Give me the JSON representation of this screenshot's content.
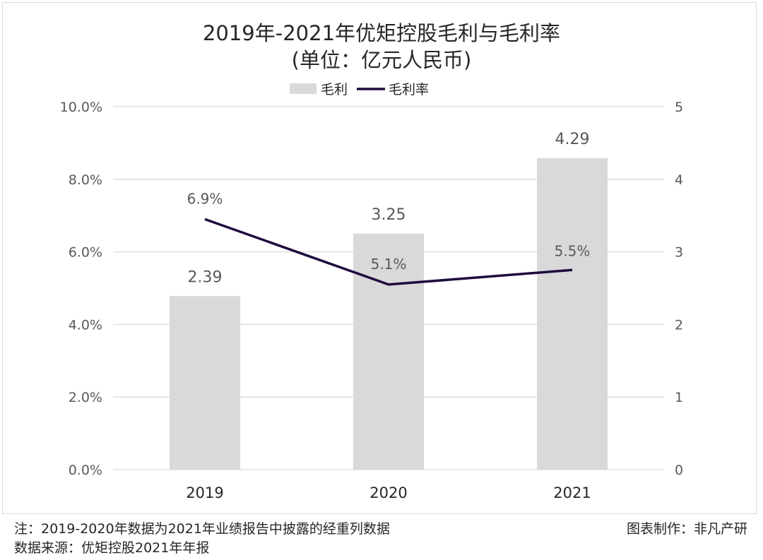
{
  "chart_data": {
    "type": "bar+line",
    "title": "2019年-2021年优矩控股毛利与毛利率",
    "subtitle": "(单位：亿元人民币)",
    "categories": [
      "2019",
      "2020",
      "2021"
    ],
    "series": [
      {
        "name": "毛利",
        "type": "bar",
        "axis": "right",
        "values": [
          2.39,
          3.25,
          4.29
        ],
        "labels": [
          "2.39",
          "3.25",
          "4.29"
        ],
        "color": "#d9d9d9"
      },
      {
        "name": "毛利率",
        "type": "line",
        "axis": "left",
        "values": [
          6.9,
          5.1,
          5.5
        ],
        "labels": [
          "6.9%",
          "5.1%",
          "5.5%"
        ],
        "color": "#1e0b3e"
      }
    ],
    "left_axis": {
      "ylim": [
        0,
        10
      ],
      "ticks": [
        "0.0%",
        "2.0%",
        "4.0%",
        "6.0%",
        "8.0%",
        "10.0%"
      ]
    },
    "right_axis": {
      "ylim": [
        0,
        5
      ],
      "ticks": [
        "0",
        "1",
        "2",
        "3",
        "4",
        "5"
      ]
    },
    "grid": true,
    "legend": "top"
  },
  "footer": {
    "note": "注：2019-2020年数据为2021年业绩报告中披露的经重列数据",
    "source": "数据来源：优矩控股2021年年报",
    "credit": "图表制作：非凡产研"
  }
}
